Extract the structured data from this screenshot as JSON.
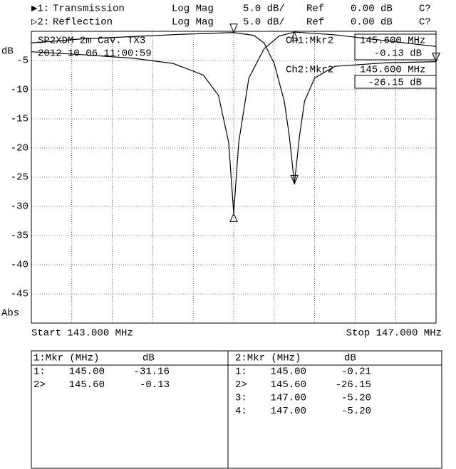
{
  "header": {
    "channels": [
      {
        "marker": "▶1:",
        "name": "Transmission",
        "format": "Log Mag",
        "scale": "5.0 dB/",
        "ref_label": "Ref",
        "ref": "0.00 dB",
        "status": "C?"
      },
      {
        "marker": "▷2:",
        "name": "Reflection",
        "format": "Log Mag",
        "scale": "5.0 dB/",
        "ref_label": "Ref",
        "ref": "0.00 dB",
        "status": "C?"
      }
    ]
  },
  "chart_data": {
    "type": "line",
    "y_label": "dB",
    "y_label_bottom": "Abs",
    "start_label": "Start 143.000 MHz",
    "stop_label": "Stop 147.000 MHz",
    "annotations": [
      "SP2XDM 2m Cav. TX3",
      "2012 10 06 11:00:59"
    ],
    "readouts": [
      {
        "title": "Ch1:Mkr2",
        "freq": "145.600 MHz",
        "value": "-0.13 dB"
      },
      {
        "title": "Ch2:Mkr2",
        "freq": "145.600 MHz",
        "value": "-26.15 dB"
      }
    ],
    "xlim": [
      143,
      147
    ],
    "xticks": [
      143,
      143.4,
      143.8,
      144.2,
      144.6,
      145,
      145.4,
      145.8,
      146.2,
      146.6,
      147
    ],
    "ylim": [
      -50,
      0
    ],
    "yticks": [
      -5,
      -10,
      -15,
      -20,
      -25,
      -30,
      -35,
      -40,
      -45
    ],
    "grid": true,
    "series": [
      {
        "name": "Transmission",
        "color": "#000000",
        "x": [
          143,
          143.5,
          144,
          144.4,
          144.7,
          144.85,
          144.95,
          145,
          145.05,
          145.15,
          145.3,
          145.45,
          145.6,
          146,
          146.5,
          147
        ],
        "values": [
          -3.5,
          -4,
          -4.6,
          -5.5,
          -7.5,
          -11,
          -19,
          -31.16,
          -19,
          -8,
          -3,
          -0.8,
          -0.13,
          -0.6,
          -1.6,
          -2.6
        ]
      },
      {
        "name": "Reflection",
        "color": "#000000",
        "x": [
          143,
          143.5,
          144,
          144.5,
          145,
          145.2,
          145.3,
          145.4,
          145.5,
          145.55,
          145.6,
          145.65,
          145.7,
          145.8,
          146,
          146.5,
          147
        ],
        "values": [
          -2,
          -1.3,
          -0.9,
          -0.5,
          -0.21,
          -0.7,
          -2,
          -5.5,
          -12,
          -18,
          -26.15,
          -18,
          -12,
          -8,
          -6,
          -5.4,
          -5.2
        ]
      }
    ]
  },
  "marker_tables": [
    {
      "title": "1:Mkr (MHz)",
      "unit": "dB",
      "rows": [
        {
          "id": "1:",
          "x": 145,
          "x_label": "145.00",
          "value": -31.16
        },
        {
          "id": "2>",
          "x": 145.6,
          "x_label": "145.60",
          "value": -0.13
        }
      ]
    },
    {
      "title": "2:Mkr (MHz)",
      "unit": "dB",
      "rows": [
        {
          "id": "1:",
          "x": 145,
          "x_label": "145.00",
          "value": -0.21
        },
        {
          "id": "2>",
          "x": 145.6,
          "x_label": "145.60",
          "value": -26.15
        },
        {
          "id": "3:",
          "x": 147,
          "x_label": "147.00",
          "value": -5.2,
          "value_label": "-5.20"
        },
        {
          "id": "4:",
          "x": 147,
          "x_label": "147.00",
          "value": -5.2,
          "value_label": "-5.20"
        }
      ]
    }
  ]
}
